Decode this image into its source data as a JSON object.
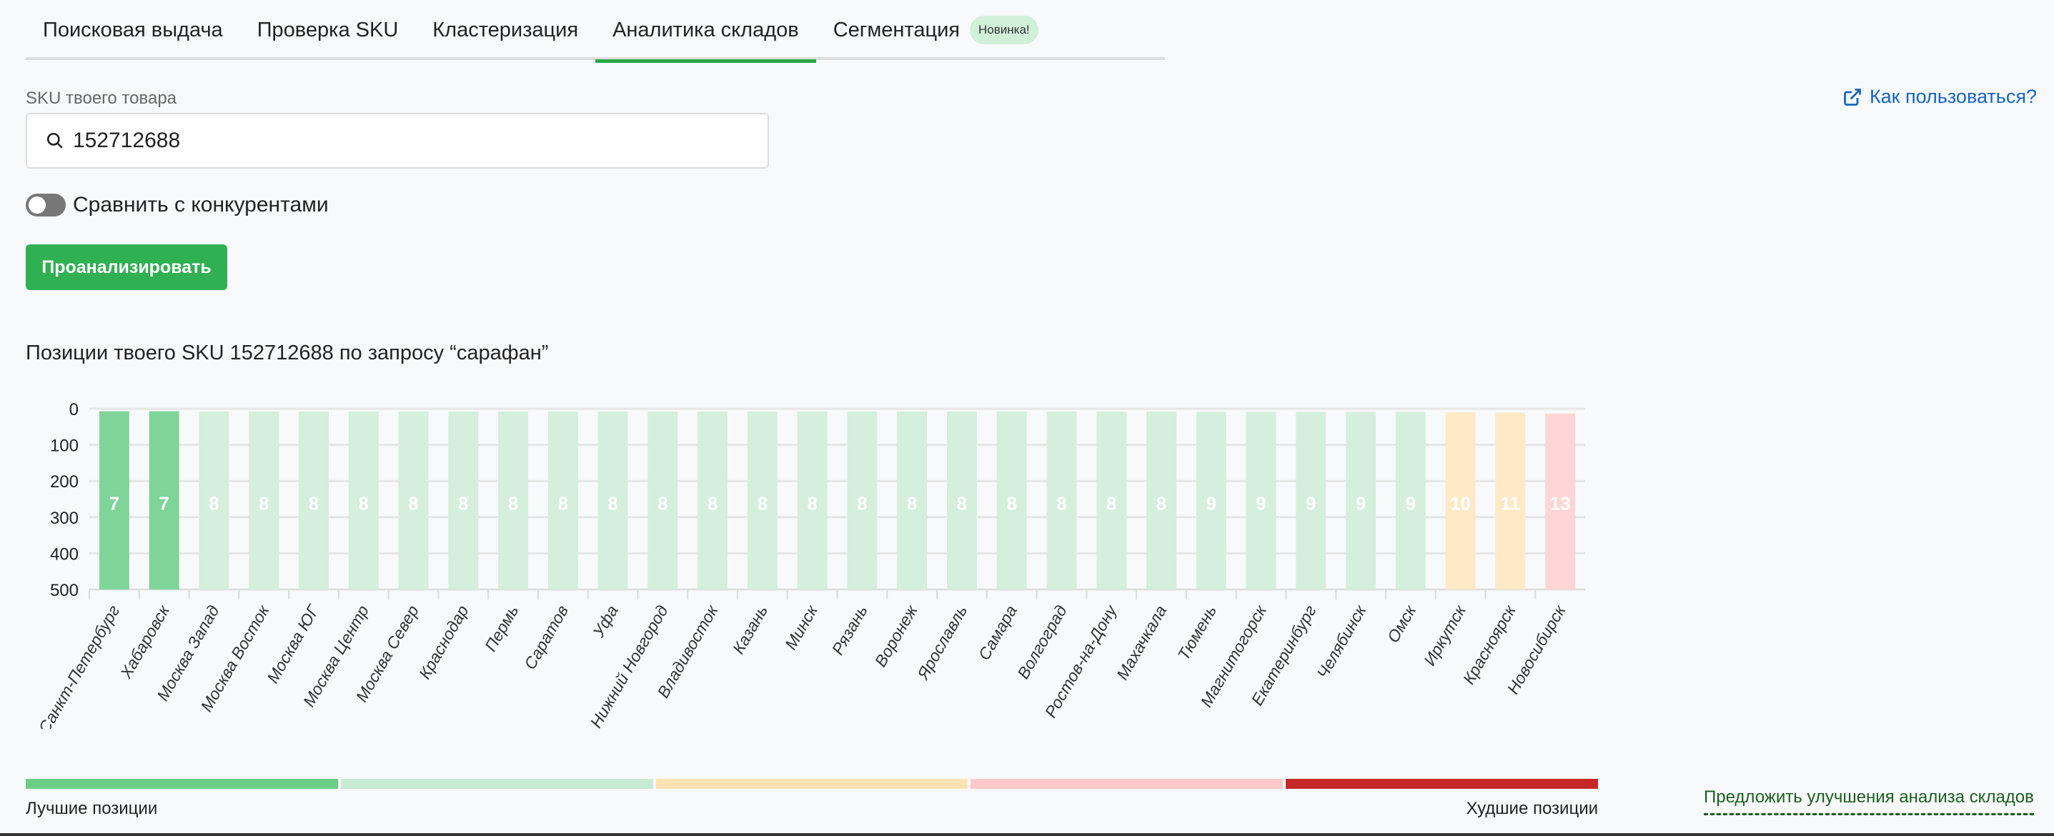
{
  "tabs": [
    {
      "label": "Поисковая выдача"
    },
    {
      "label": "Проверка SKU"
    },
    {
      "label": "Кластеризация"
    },
    {
      "label": "Аналитика складов",
      "active": true
    },
    {
      "label": "Сегментация",
      "badge": "Новинка!"
    }
  ],
  "form": {
    "sku_label": "SKU твоего товара",
    "sku_value": "152712688",
    "compare_label": "Сравнить с конкурентами",
    "analyze_button": "Проанализировать"
  },
  "help_link": "Как пользоваться?",
  "heading": "Позиции твоего SKU 152712688 по запросу “сарафан”",
  "chart_data": {
    "type": "bar",
    "title": "Позиции твоего SKU 152712688 по запросу “сарафан”",
    "categories": [
      "Санкт-Петербург",
      "Хабаровск",
      "Москва Запад",
      "Москва Восток",
      "Москва ЮГ",
      "Москва Центр",
      "Москва Север",
      "Краснодар",
      "Пермь",
      "Саратов",
      "Уфа",
      "Нижний Новгород",
      "Владивосток",
      "Казань",
      "Минск",
      "Рязань",
      "Воронеж",
      "Ярославль",
      "Самара",
      "Волгоград",
      "Ростов-на-Дону",
      "Махачкала",
      "Тюмень",
      "Магнитогорск",
      "Екатеринбург",
      "Челябинск",
      "Омск",
      "Иркутск",
      "Красноярск",
      "Новосибирск"
    ],
    "values": [
      7,
      7,
      8,
      8,
      8,
      8,
      8,
      8,
      8,
      8,
      8,
      8,
      8,
      8,
      8,
      8,
      8,
      8,
      8,
      8,
      8,
      8,
      9,
      9,
      9,
      9,
      9,
      10,
      11,
      13
    ],
    "ylim": [
      0,
      500
    ],
    "y_inverted": true,
    "yticks": [
      0,
      100,
      200,
      300,
      400,
      500
    ],
    "grid": true,
    "colors": {
      "best": "#7fd498",
      "good": "#d4efdc",
      "mid": "#ffe9c6",
      "bad": "#ffd5d5"
    }
  },
  "legend": {
    "best_label": "Лучшие позиции",
    "worst_label": "Худшие позиции",
    "colors": [
      "#6ccf86",
      "#c8ebd3",
      "#fde3b4",
      "#ffc9c9",
      "#c62828"
    ]
  },
  "suggest_link": "Предложить улучшения анализа складов"
}
